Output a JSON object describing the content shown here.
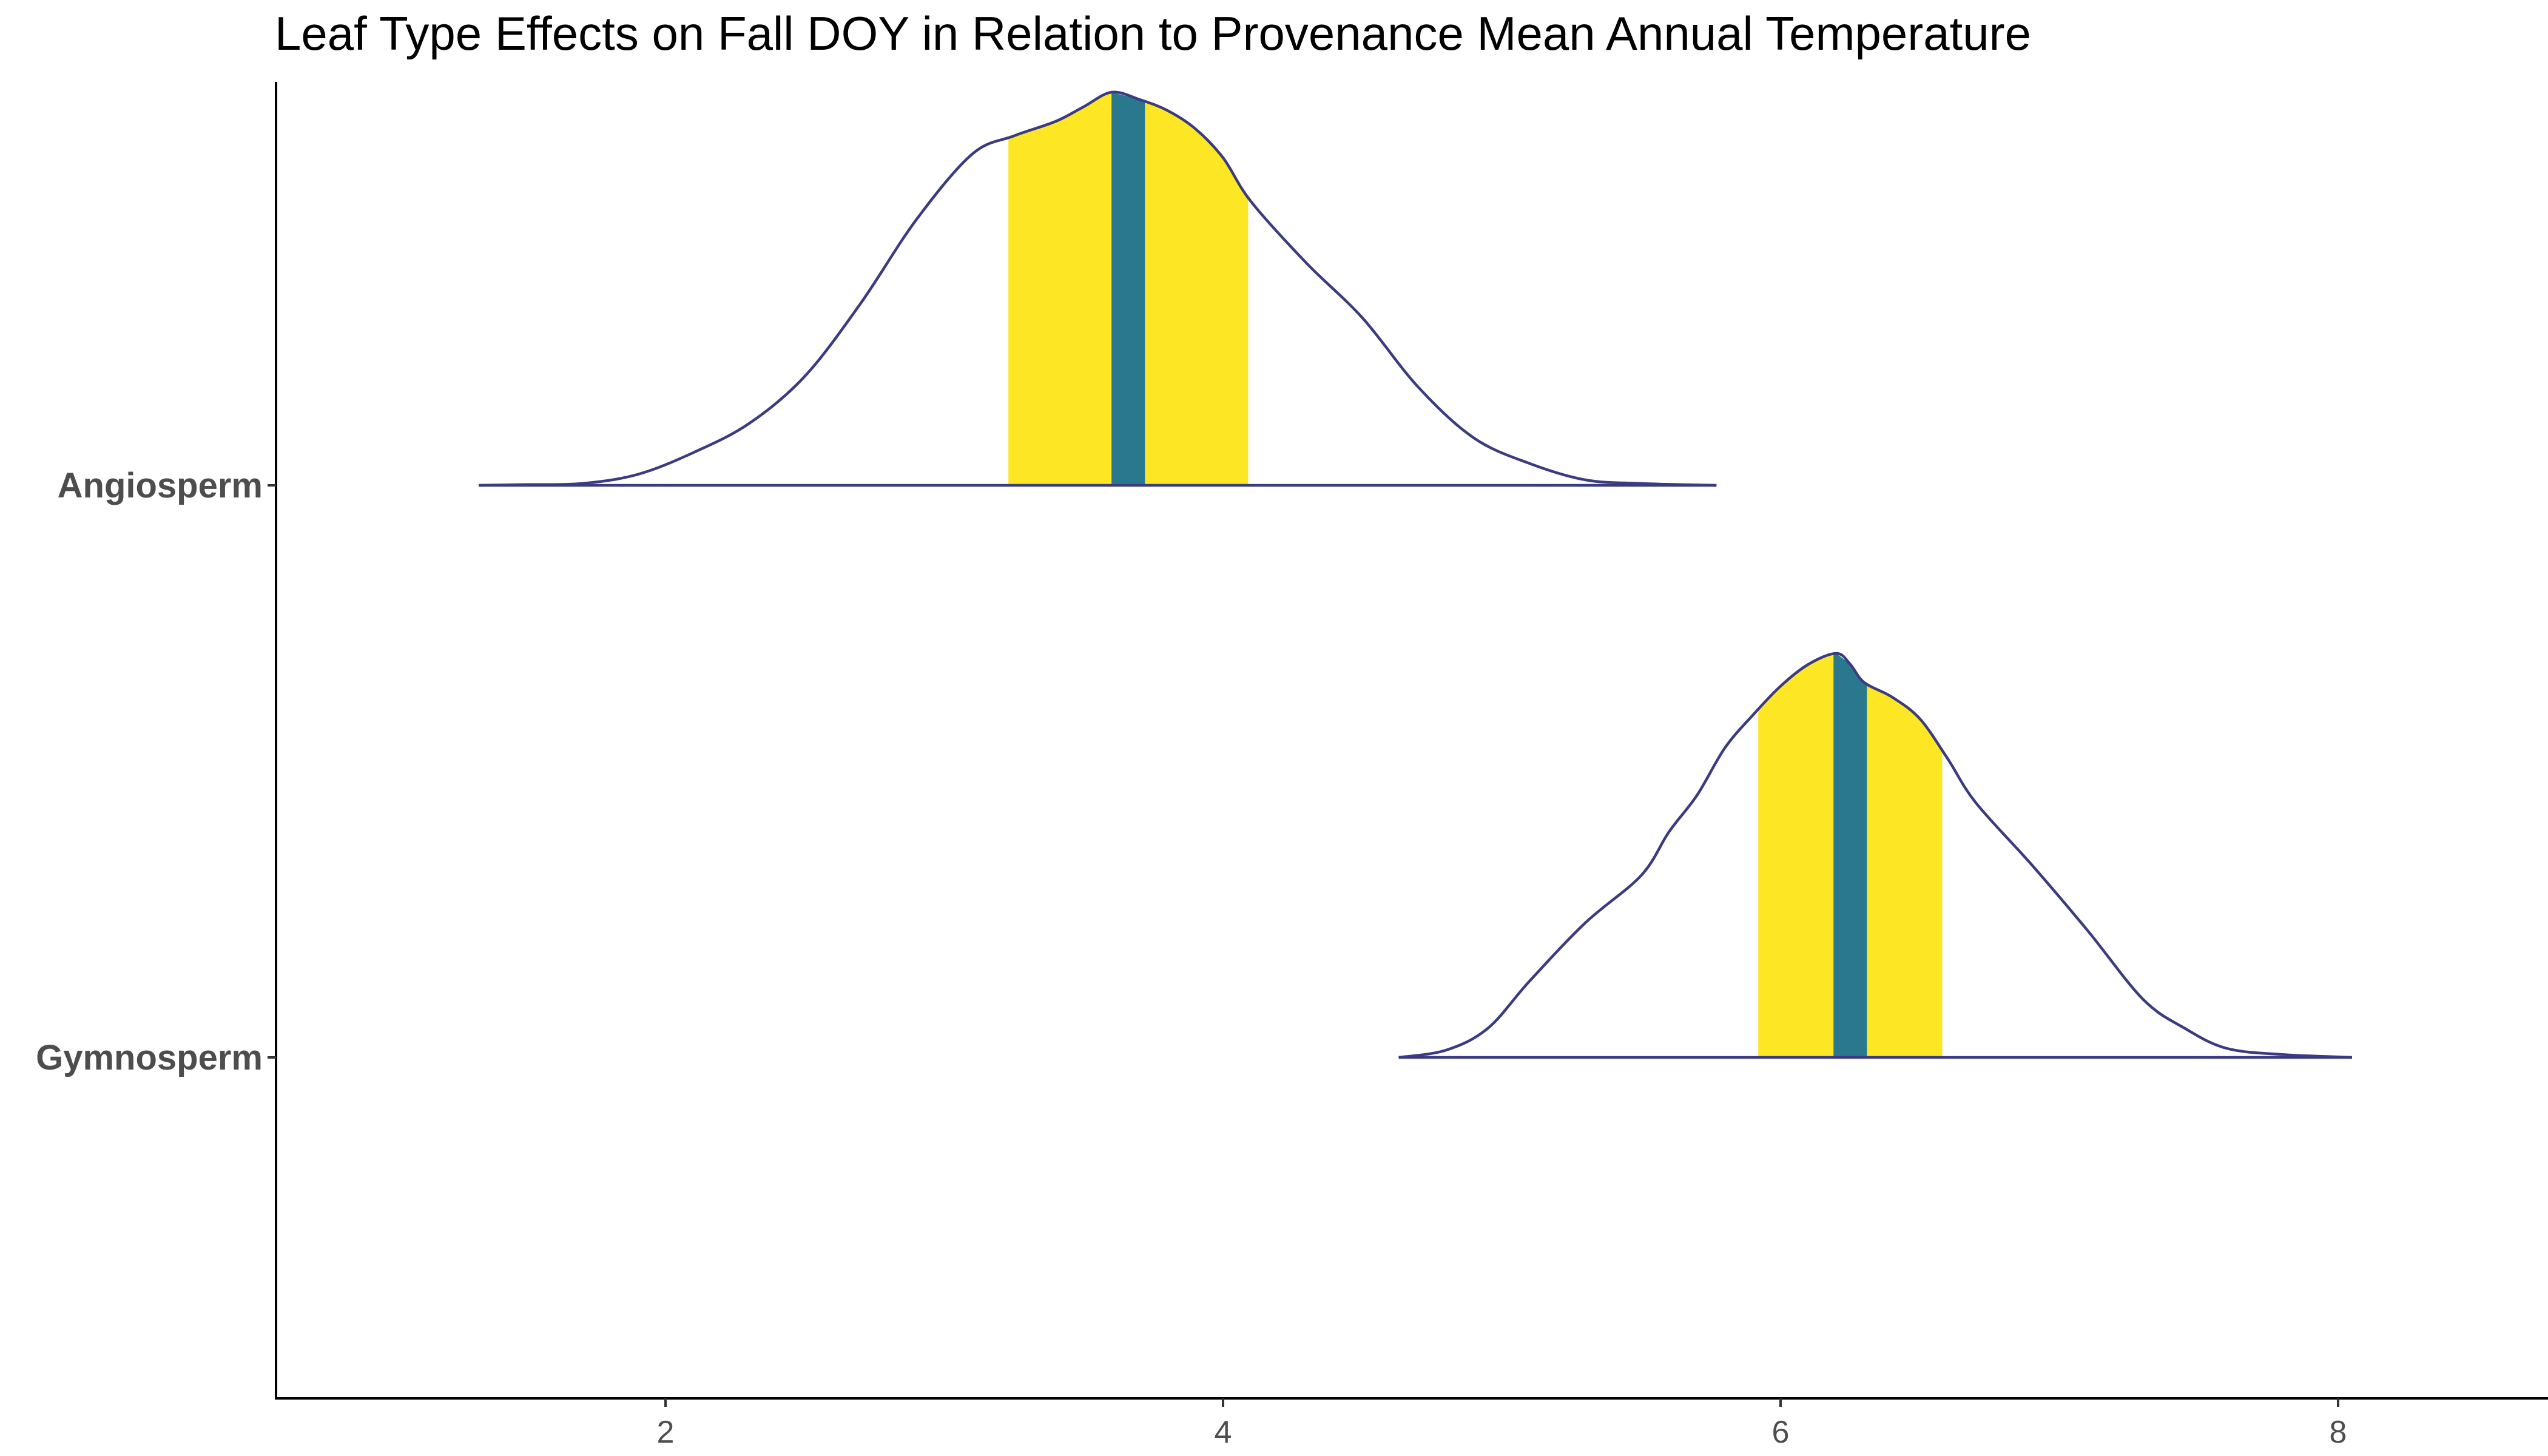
{
  "chart_data": {
    "type": "area",
    "title": "Leaf Type Effects on Fall DOY in Relation to Provenance Mean Annual Temperature",
    "xlabel": "",
    "ylabel": "",
    "xlim": [
      0.7,
      8.75
    ],
    "x_ticks": [
      2,
      4,
      6,
      8
    ],
    "x_tick_labels": [
      "2",
      "4",
      "6",
      "8"
    ],
    "grid": false,
    "legend": "none",
    "colors": {
      "outline": "#3b3b7f",
      "interval_fill": "#fde725",
      "median_line": "#2a788e",
      "axis": "#000000",
      "tick_label": "#4d4d4d"
    },
    "series": [
      {
        "name": "Angiosperm",
        "median": 3.66,
        "interval": [
          3.23,
          4.09
        ],
        "density": {
          "x": [
            1.33,
            1.5,
            1.7,
            1.9,
            2.1,
            2.3,
            2.5,
            2.7,
            2.9,
            3.1,
            3.25,
            3.4,
            3.5,
            3.6,
            3.7,
            3.8,
            3.9,
            4.0,
            4.1,
            4.3,
            4.5,
            4.7,
            4.9,
            5.1,
            5.3,
            5.5,
            5.77
          ],
          "y": [
            0.0,
            0.002,
            0.005,
            0.03,
            0.09,
            0.17,
            0.3,
            0.5,
            0.73,
            0.91,
            0.96,
            1.0,
            1.04,
            1.08,
            1.06,
            1.03,
            0.98,
            0.9,
            0.78,
            0.61,
            0.46,
            0.27,
            0.13,
            0.06,
            0.015,
            0.005,
            0.0
          ]
        }
      },
      {
        "name": "Gymnosperm",
        "median": 6.25,
        "interval": [
          5.92,
          6.58
        ],
        "density": {
          "x": [
            4.63,
            4.8,
            4.95,
            5.1,
            5.3,
            5.5,
            5.6,
            5.7,
            5.8,
            5.9,
            6.0,
            6.1,
            6.2,
            6.25,
            6.3,
            6.4,
            6.5,
            6.6,
            6.7,
            6.9,
            7.1,
            7.3,
            7.45,
            7.6,
            7.8,
            8.05
          ],
          "y": [
            0.0,
            0.02,
            0.08,
            0.21,
            0.37,
            0.5,
            0.62,
            0.72,
            0.85,
            0.94,
            1.02,
            1.08,
            1.11,
            1.08,
            1.03,
            0.99,
            0.93,
            0.82,
            0.7,
            0.53,
            0.35,
            0.16,
            0.08,
            0.025,
            0.008,
            0.0
          ]
        }
      }
    ]
  }
}
